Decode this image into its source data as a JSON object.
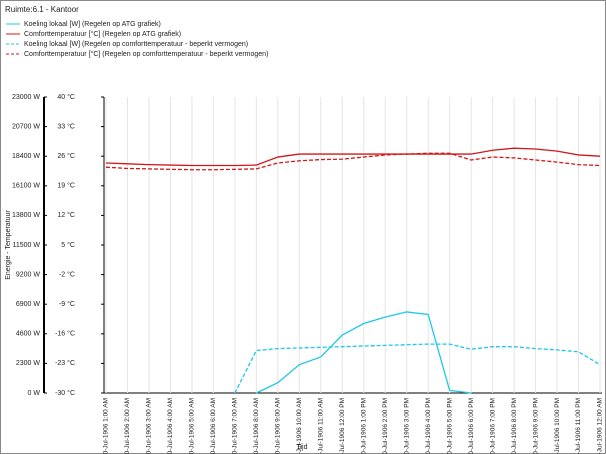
{
  "chart_data": {
    "type": "line",
    "title": "Ruimte:6.1 - Kantoor",
    "xlabel": "Tijd",
    "ylabel": "Energie - Temperatuur",
    "categories": [
      "0-Jul-1906 1:00 AM",
      "0-Jul-1906 2:00 AM",
      "0-Jul-1906 3:00 AM",
      "0-Jul-1906 4:00 AM",
      "0-Jul-1906 5:00 AM",
      "0-Jul-1906 6:00 AM",
      "0-Jul-1906 7:00 AM",
      "0-Jul-1906 8:00 AM",
      "0-Jul-1906 9:00 AM",
      "0-Jul-1906 10:00 AM",
      "0-Jul-1906 11:00 AM",
      "0-Jul-1906 12:00 PM",
      "0-Jul-1906 1:00 PM",
      "0-Jul-1906 2:00 PM",
      "0-Jul-1906 3:00 PM",
      "0-Jul-1906 4:00 PM",
      "0-Jul-1906 5:00 PM",
      "0-Jul-1906 6:00 PM",
      "0-Jul-1906 7:00 PM",
      "0-Jul-1906 8:00 PM",
      "0-Jul-1906 9:00 PM",
      "0-Jul-1906 10:00 PM",
      "0-Jul-1906 11:00 PM",
      "0-Jul-1906 12:00 AM"
    ],
    "series": [
      {
        "name": "Koeling lokaal [W] (Regelen op ATG grafiek)",
        "color": "#1ec8e6",
        "dashed": false,
        "values": [
          null,
          null,
          null,
          null,
          null,
          null,
          null,
          0,
          800,
          2200,
          2800,
          4500,
          5400,
          5900,
          6300,
          6100,
          200,
          0,
          null,
          null,
          null,
          null,
          null,
          null
        ]
      },
      {
        "name": "Comforttemperatuur [°C] (Regelen op ATG grafiek)",
        "color": "#d01818",
        "dashed": false,
        "axis": "y2",
        "values": [
          24.4,
          24.2,
          24.0,
          23.9,
          23.8,
          23.8,
          23.8,
          23.9,
          25.8,
          26.5,
          26.5,
          26.5,
          26.5,
          26.5,
          26.5,
          26.5,
          26.5,
          26.5,
          27.4,
          27.9,
          27.7,
          27.2,
          26.3,
          26.0
        ]
      },
      {
        "name": "Koeling lokaal [W] (Regelen op comforttemperatuur - beperkt vermogen)",
        "color": "#1ec8e6",
        "dashed": true,
        "values": [
          null,
          null,
          null,
          null,
          null,
          null,
          0,
          3300,
          3450,
          3500,
          3550,
          3600,
          3650,
          3700,
          3750,
          3800,
          3800,
          3400,
          3600,
          3600,
          3450,
          3350,
          3200,
          2200
        ]
      },
      {
        "name": "Comforttemperatuur [°C] (Regelen op comforttemperatuur - beperkt vermogen)",
        "color": "#d01818",
        "dashed": true,
        "axis": "y2",
        "values": [
          23.4,
          23.1,
          23.0,
          22.9,
          22.8,
          22.8,
          22.9,
          23.0,
          24.4,
          24.9,
          25.2,
          25.3,
          25.8,
          26.3,
          26.5,
          26.7,
          26.7,
          25.1,
          25.8,
          25.6,
          25.1,
          24.6,
          24.0,
          23.8
        ]
      }
    ],
    "ylim": [
      0,
      23000
    ],
    "yticks": [
      {
        "value": 0,
        "label": "0 W"
      },
      {
        "value": 2300,
        "label": "2300 W"
      },
      {
        "value": 4600,
        "label": "4600 W"
      },
      {
        "value": 6900,
        "label": "6900 W"
      },
      {
        "value": 9200,
        "label": "9200 W"
      },
      {
        "value": 11500,
        "label": "11500 W"
      },
      {
        "value": 13800,
        "label": "13800 W"
      },
      {
        "value": 16100,
        "label": "16100 W"
      },
      {
        "value": 18400,
        "label": "18400 W"
      },
      {
        "value": 20700,
        "label": "20700 W"
      },
      {
        "value": 23000,
        "label": "23000 W"
      }
    ],
    "y2lim": [
      -30,
      40
    ],
    "y2ticks": [
      {
        "value": -30,
        "label": "-30 °C"
      },
      {
        "value": -23,
        "label": "-23 °C"
      },
      {
        "value": -16,
        "label": "-16 °C"
      },
      {
        "value": -9,
        "label": "-9 °C"
      },
      {
        "value": -2,
        "label": "-2 °C"
      },
      {
        "value": 5,
        "label": "5 °C"
      },
      {
        "value": 12,
        "label": "12 °C"
      },
      {
        "value": 19,
        "label": "19 °C"
      },
      {
        "value": 26,
        "label": "26 °C"
      },
      {
        "value": 33,
        "label": "33 °C"
      },
      {
        "value": 40,
        "label": "40 °C"
      }
    ],
    "grid": true
  }
}
